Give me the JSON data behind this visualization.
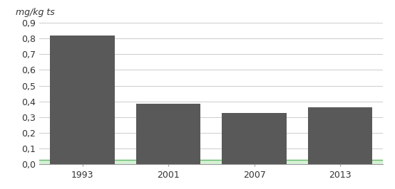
{
  "categories": [
    "1993",
    "2001",
    "2007",
    "2013"
  ],
  "values": [
    0.82,
    0.385,
    0.325,
    0.365
  ],
  "green_value": 0.028,
  "bar_color": "#595959",
  "green_color": "#d6f0d6",
  "green_edge_color": "#66bb6a",
  "background_color": "#ffffff",
  "title": "mg/kg ts",
  "ylim": [
    0,
    0.9
  ],
  "yticks": [
    0.0,
    0.1,
    0.2,
    0.3,
    0.4,
    0.5,
    0.6,
    0.7,
    0.8,
    0.9
  ],
  "ytick_labels": [
    "0,0",
    "0,1",
    "0,2",
    "0,3",
    "0,4",
    "0,5",
    "0,6",
    "0,7",
    "0,8",
    "0,9"
  ],
  "grid_color": "#cccccc",
  "bar_width": 0.75
}
